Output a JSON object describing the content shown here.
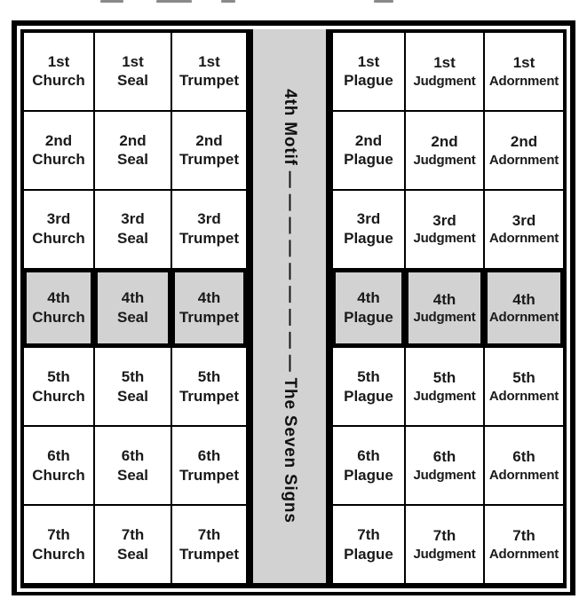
{
  "diagram": {
    "ordinals": [
      "1st",
      "2nd",
      "3rd",
      "4th",
      "5th",
      "6th",
      "7th"
    ],
    "left_block_columns": [
      "Church",
      "Seal",
      "Trumpet"
    ],
    "right_block_columns": [
      "Plague",
      "Judgment",
      "Adornment"
    ],
    "highlighted_row_ordinal": "4th",
    "center_column": {
      "label": "4th Motif — — — — — — — — — The Seven Signs"
    },
    "colors": {
      "highlight_fill": "#d2d2d2",
      "line": "#000000",
      "text": "#1a1a1a",
      "background": "#ffffff"
    }
  }
}
